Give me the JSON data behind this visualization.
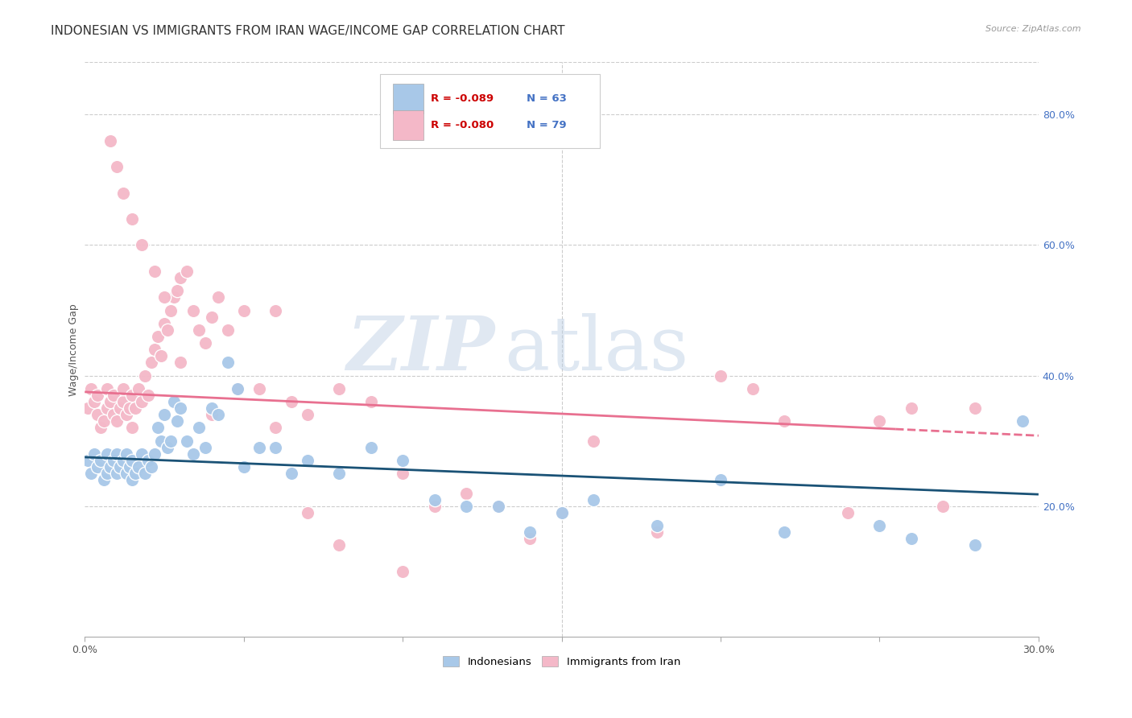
{
  "title": "INDONESIAN VS IMMIGRANTS FROM IRAN WAGE/INCOME GAP CORRELATION CHART",
  "source": "Source: ZipAtlas.com",
  "ylabel": "Wage/Income Gap",
  "xlim": [
    0.0,
    0.3
  ],
  "ylim": [
    0.0,
    0.88
  ],
  "y_ticks_right": [
    0.2,
    0.4,
    0.6,
    0.8
  ],
  "y_tick_labels_right": [
    "20.0%",
    "40.0%",
    "60.0%",
    "80.0%"
  ],
  "blue_color": "#a8c8e8",
  "pink_color": "#f4b8c8",
  "line_blue": "#1a5276",
  "line_pink": "#e87090",
  "watermark_zip": "ZIP",
  "watermark_atlas": "atlas",
  "blue_scatter_x": [
    0.001,
    0.002,
    0.003,
    0.004,
    0.005,
    0.006,
    0.007,
    0.007,
    0.008,
    0.009,
    0.01,
    0.01,
    0.011,
    0.012,
    0.013,
    0.013,
    0.014,
    0.015,
    0.015,
    0.016,
    0.017,
    0.018,
    0.019,
    0.02,
    0.021,
    0.022,
    0.023,
    0.024,
    0.025,
    0.026,
    0.027,
    0.028,
    0.029,
    0.03,
    0.032,
    0.034,
    0.036,
    0.038,
    0.04,
    0.042,
    0.045,
    0.048,
    0.05,
    0.055,
    0.06,
    0.065,
    0.07,
    0.08,
    0.09,
    0.1,
    0.11,
    0.12,
    0.13,
    0.14,
    0.15,
    0.16,
    0.18,
    0.2,
    0.22,
    0.25,
    0.26,
    0.28,
    0.295
  ],
  "blue_scatter_y": [
    0.27,
    0.25,
    0.28,
    0.26,
    0.27,
    0.24,
    0.25,
    0.28,
    0.26,
    0.27,
    0.28,
    0.25,
    0.26,
    0.27,
    0.25,
    0.28,
    0.26,
    0.27,
    0.24,
    0.25,
    0.26,
    0.28,
    0.25,
    0.27,
    0.26,
    0.28,
    0.32,
    0.3,
    0.34,
    0.29,
    0.3,
    0.36,
    0.33,
    0.35,
    0.3,
    0.28,
    0.32,
    0.29,
    0.35,
    0.34,
    0.42,
    0.38,
    0.26,
    0.29,
    0.29,
    0.25,
    0.27,
    0.25,
    0.29,
    0.27,
    0.21,
    0.2,
    0.2,
    0.16,
    0.19,
    0.21,
    0.17,
    0.24,
    0.16,
    0.17,
    0.15,
    0.14,
    0.33
  ],
  "pink_scatter_x": [
    0.001,
    0.002,
    0.003,
    0.004,
    0.004,
    0.005,
    0.006,
    0.007,
    0.007,
    0.008,
    0.009,
    0.009,
    0.01,
    0.011,
    0.012,
    0.012,
    0.013,
    0.014,
    0.015,
    0.015,
    0.016,
    0.017,
    0.018,
    0.019,
    0.02,
    0.021,
    0.022,
    0.023,
    0.024,
    0.025,
    0.026,
    0.027,
    0.028,
    0.029,
    0.03,
    0.032,
    0.034,
    0.036,
    0.038,
    0.04,
    0.042,
    0.045,
    0.048,
    0.05,
    0.055,
    0.06,
    0.065,
    0.07,
    0.08,
    0.09,
    0.1,
    0.11,
    0.12,
    0.13,
    0.14,
    0.15,
    0.16,
    0.18,
    0.2,
    0.21,
    0.22,
    0.24,
    0.25,
    0.26,
    0.27,
    0.28,
    0.008,
    0.01,
    0.012,
    0.015,
    0.018,
    0.022,
    0.025,
    0.03,
    0.04,
    0.06,
    0.07,
    0.08,
    0.1
  ],
  "pink_scatter_y": [
    0.35,
    0.38,
    0.36,
    0.37,
    0.34,
    0.32,
    0.33,
    0.35,
    0.38,
    0.36,
    0.34,
    0.37,
    0.33,
    0.35,
    0.36,
    0.38,
    0.34,
    0.35,
    0.37,
    0.32,
    0.35,
    0.38,
    0.36,
    0.4,
    0.37,
    0.42,
    0.44,
    0.46,
    0.43,
    0.48,
    0.47,
    0.5,
    0.52,
    0.53,
    0.55,
    0.56,
    0.5,
    0.47,
    0.45,
    0.49,
    0.52,
    0.47,
    0.38,
    0.5,
    0.38,
    0.5,
    0.36,
    0.34,
    0.38,
    0.36,
    0.25,
    0.2,
    0.22,
    0.2,
    0.15,
    0.19,
    0.3,
    0.16,
    0.4,
    0.38,
    0.33,
    0.19,
    0.33,
    0.35,
    0.2,
    0.35,
    0.76,
    0.72,
    0.68,
    0.64,
    0.6,
    0.56,
    0.52,
    0.42,
    0.34,
    0.32,
    0.19,
    0.14,
    0.1
  ],
  "blue_line_x0": 0.0,
  "blue_line_y0": 0.275,
  "blue_line_x1": 0.3,
  "blue_line_y1": 0.218,
  "pink_line_x0": 0.0,
  "pink_line_y0": 0.375,
  "pink_line_x1": 0.3,
  "pink_line_y1": 0.308,
  "title_fontsize": 11,
  "tick_fontsize": 9,
  "background_color": "#ffffff",
  "grid_color": "#cccccc"
}
